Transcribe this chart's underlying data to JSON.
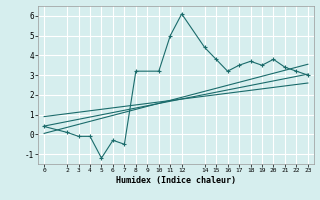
{
  "xlabel": "Humidex (Indice chaleur)",
  "ylabel": "",
  "bg_color": "#d6eeee",
  "grid_color": "#ffffff",
  "line_color": "#1a6b6b",
  "xlim": [
    -0.5,
    23.5
  ],
  "ylim": [
    -1.5,
    6.5
  ],
  "xticks": [
    0,
    2,
    3,
    4,
    5,
    6,
    7,
    8,
    9,
    10,
    11,
    12,
    14,
    15,
    16,
    17,
    18,
    19,
    20,
    21,
    22,
    23
  ],
  "yticks": [
    -1,
    0,
    1,
    2,
    3,
    4,
    5,
    6
  ],
  "data_x": [
    0,
    2,
    3,
    4,
    5,
    6,
    7,
    8,
    10,
    11,
    12,
    14,
    15,
    16,
    17,
    18,
    19,
    20,
    21,
    22,
    23
  ],
  "data_y": [
    0.4,
    0.1,
    -0.1,
    -0.1,
    -1.2,
    -0.3,
    -0.5,
    3.2,
    3.2,
    5.0,
    6.1,
    4.4,
    3.8,
    3.2,
    3.5,
    3.7,
    3.5,
    3.8,
    3.4,
    3.2,
    3.0
  ],
  "trend1_x": [
    0,
    23
  ],
  "trend1_y": [
    0.42,
    3.05
  ],
  "trend2_x": [
    0,
    23
  ],
  "trend2_y": [
    0.9,
    2.6
  ],
  "trend3_x": [
    0,
    23
  ],
  "trend3_y": [
    0.05,
    3.55
  ]
}
